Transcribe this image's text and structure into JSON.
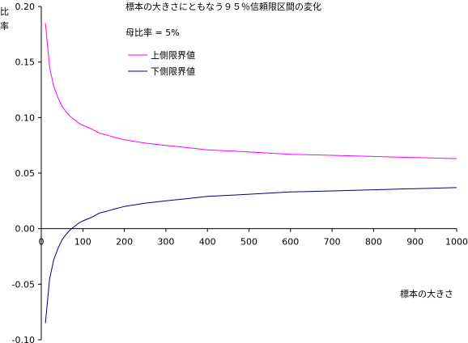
{
  "chart_data": {
    "type": "line",
    "title": "標本の大きさにともなう９５％信頼限区間の変化",
    "subtitle": "母比率 = 5%",
    "xlabel": "標本の大きさ",
    "ylabel": "比率",
    "xlim": [
      0,
      1000
    ],
    "ylim": [
      -0.1,
      0.2
    ],
    "xticks": [
      0,
      100,
      200,
      300,
      400,
      500,
      600,
      700,
      800,
      900,
      1000
    ],
    "xtick_labels": [
      "0",
      "100",
      "200",
      "300",
      "400",
      "500",
      "600",
      "700",
      "800",
      "900",
      "1000"
    ],
    "yticks": [
      -0.1,
      -0.05,
      0.0,
      0.05,
      0.1,
      0.15,
      0.2
    ],
    "ytick_labels": [
      "-0.10",
      "-0.05",
      "0.00",
      "0.05",
      "0.10",
      "0.15",
      "0.20"
    ],
    "grid": false,
    "legend_position": "top-left",
    "x": [
      10,
      20,
      30,
      40,
      50,
      60,
      70,
      80,
      90,
      100,
      120,
      140,
      160,
      180,
      200,
      250,
      300,
      350,
      400,
      450,
      500,
      600,
      700,
      800,
      900,
      1000
    ],
    "series": [
      {
        "name": "上側限界値",
        "color": "#ff00ff",
        "values": [
          0.185,
          0.145,
          0.128,
          0.118,
          0.11,
          0.105,
          0.101,
          0.098,
          0.095,
          0.093,
          0.09,
          0.086,
          0.084,
          0.082,
          0.08,
          0.077,
          0.075,
          0.073,
          0.071,
          0.07,
          0.069,
          0.067,
          0.066,
          0.065,
          0.064,
          0.063
        ]
      },
      {
        "name": "下側限界値",
        "color": "#000080",
        "values": [
          -0.085,
          -0.045,
          -0.028,
          -0.018,
          -0.01,
          -0.005,
          -0.001,
          0.002,
          0.005,
          0.007,
          0.01,
          0.014,
          0.016,
          0.018,
          0.02,
          0.023,
          0.025,
          0.027,
          0.029,
          0.03,
          0.031,
          0.033,
          0.034,
          0.035,
          0.036,
          0.037
        ]
      }
    ]
  }
}
